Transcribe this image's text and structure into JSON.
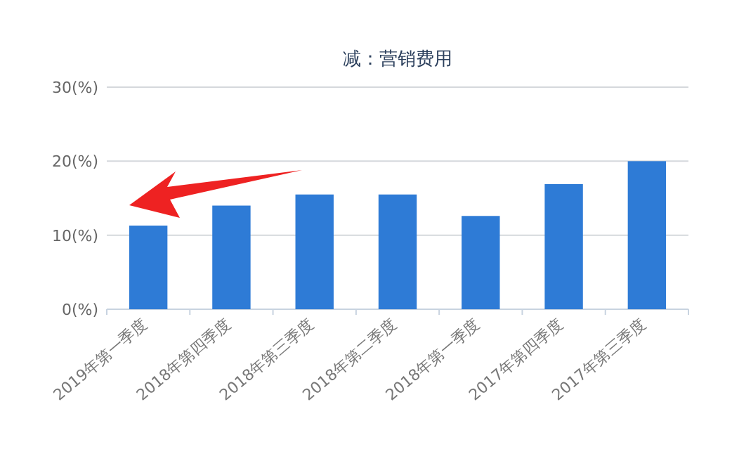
{
  "chart_data": {
    "type": "bar",
    "title": "减：营销费用",
    "categories": [
      "2019年第一季度",
      "2018年第四季度",
      "2018年第三季度",
      "2018年第二季度",
      "2018年第一季度",
      "2017年第四季度",
      "2017年第三季度"
    ],
    "values": [
      11.3,
      14.0,
      15.5,
      15.5,
      12.6,
      16.9,
      20.0
    ],
    "color": "#2e7bd6",
    "ylim": [
      0,
      30
    ],
    "yticks": [
      {
        "value": 0,
        "label": "0(%)"
      },
      {
        "value": 10,
        "label": "10(%)"
      },
      {
        "value": 20,
        "label": "20(%)"
      },
      {
        "value": 30,
        "label": "30(%)"
      }
    ],
    "grid": "y"
  }
}
